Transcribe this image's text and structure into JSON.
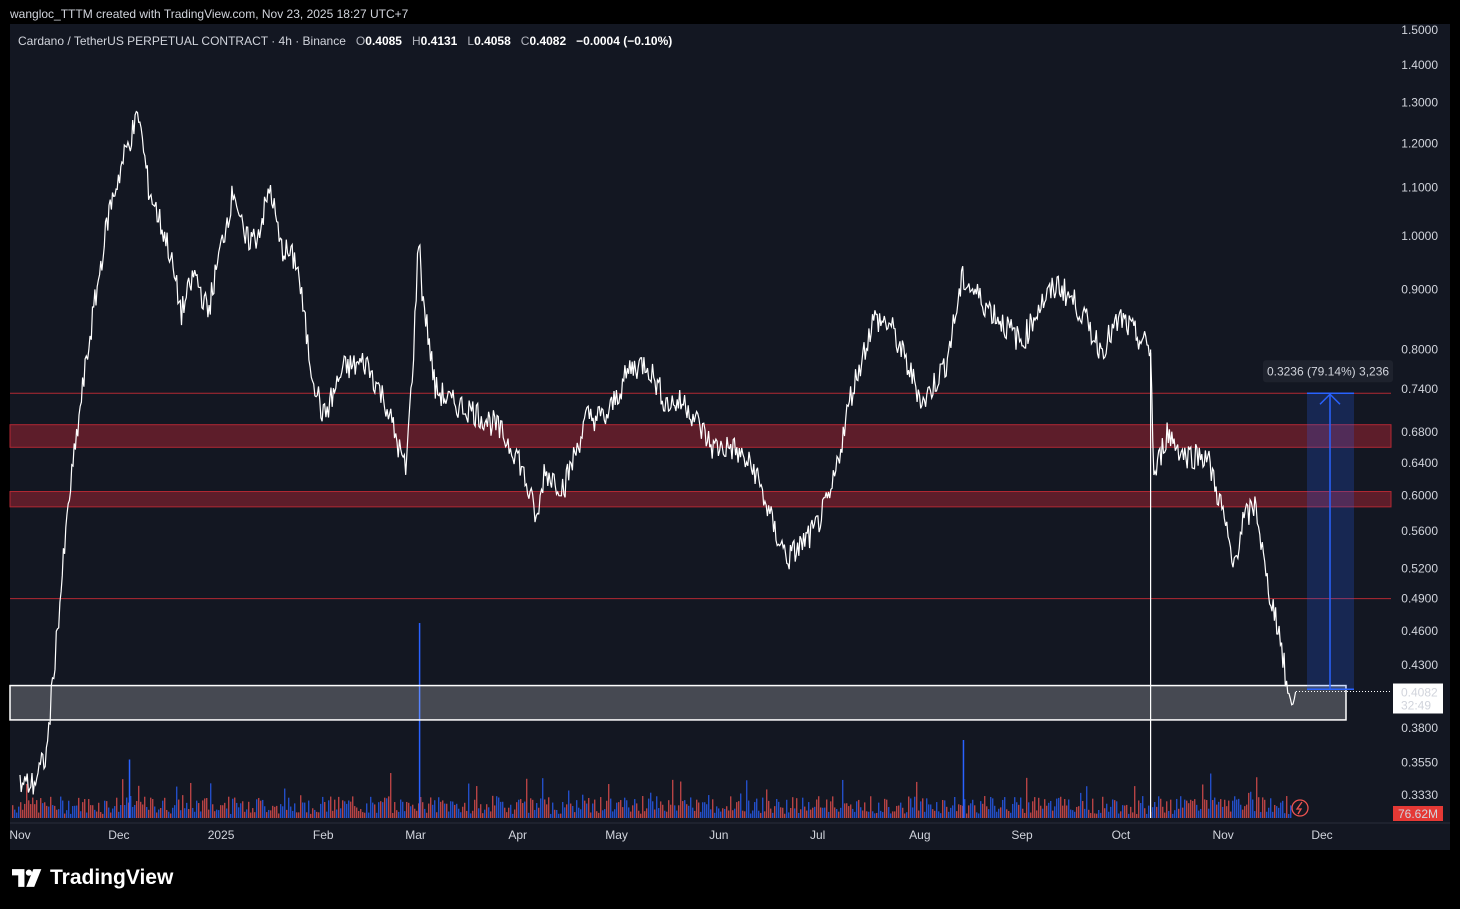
{
  "header": {
    "attribution": "wangloc_TTTM created with TradingView.com, Nov 23, 2025 18:27 UTC+7"
  },
  "symbol": {
    "name": "Cardano / TetherUS PERPETUAL CONTRACT · 4h · Binance",
    "o_label": "O",
    "o": "0.4085",
    "h_label": "H",
    "h": "0.4131",
    "l_label": "L",
    "l": "0.4058",
    "c_label": "C",
    "c": "0.4082",
    "change": "−0.0004 (−0.10%)"
  },
  "price_axis": {
    "ticks": [
      "1.5000",
      "1.4000",
      "1.3000",
      "1.2000",
      "1.1000",
      "1.0000",
      "0.9000",
      "0.8000",
      "0.7400",
      "0.6800",
      "0.6400",
      "0.6000",
      "0.5600",
      "0.5200",
      "0.4900",
      "0.4600",
      "0.4300",
      "0.3800",
      "0.3550",
      "0.3330"
    ],
    "last_price": "0.4082",
    "countdown": "32:49"
  },
  "volume": {
    "last_label": "76.62M"
  },
  "time_axis": {
    "labels": [
      "Nov",
      "Dec",
      "2025",
      "Feb",
      "Mar",
      "Apr",
      "May",
      "Jun",
      "Jul",
      "Aug",
      "Sep",
      "Oct",
      "Nov",
      "Dec"
    ]
  },
  "measure": {
    "label": "0.3236 (79.14%) 3,236"
  },
  "brand": {
    "name": "TradingView"
  },
  "colors": {
    "background": "#131722",
    "price_line": "#ffffff",
    "price_line_down": "#2962ff",
    "zone": "#6b1e2c",
    "level_line": "#b22833",
    "support_box": "#ffffff",
    "measure": "#2962ff",
    "vol_up": "#2962ff",
    "vol_down": "#ef5350",
    "last_label_bg": "#e53935"
  },
  "chart_data": {
    "type": "line",
    "series": [
      {
        "x": [
          "2024-11-01",
          "2024-11-05",
          "2024-11-09",
          "2024-11-12",
          "2024-11-16",
          "2024-11-20",
          "2024-11-23",
          "2024-11-28",
          "2024-12-03",
          "2024-12-07",
          "2024-12-10",
          "2024-12-16",
          "2024-12-20",
          "2024-12-24",
          "2024-12-28",
          "2025-01-01",
          "2025-01-05",
          "2025-01-08",
          "2025-01-12",
          "2025-01-16",
          "2025-01-19",
          "2025-01-24",
          "2025-01-28",
          "2025-02-01",
          "2025-02-03",
          "2025-02-07",
          "2025-02-14",
          "2025-02-20",
          "2025-02-26",
          "2025-02-28",
          "2025-03-02",
          "2025-03-03",
          "2025-03-07",
          "2025-03-12",
          "2025-03-18",
          "2025-03-25",
          "2025-04-01",
          "2025-04-07",
          "2025-04-09",
          "2025-04-15",
          "2025-04-22",
          "2025-04-28",
          "2025-05-05",
          "2025-05-10",
          "2025-05-16",
          "2025-05-22",
          "2025-05-30",
          "2025-06-05",
          "2025-06-12",
          "2025-06-18",
          "2025-06-22",
          "2025-06-30",
          "2025-07-05",
          "2025-07-11",
          "2025-07-18",
          "2025-07-23",
          "2025-08-02",
          "2025-08-09",
          "2025-08-14",
          "2025-08-20",
          "2025-08-25",
          "2025-09-01",
          "2025-09-06",
          "2025-09-12",
          "2025-09-18",
          "2025-09-25",
          "2025-10-01",
          "2025-10-06",
          "2025-10-10",
          "2025-10-11",
          "2025-10-15",
          "2025-10-20",
          "2025-10-27",
          "2025-11-01",
          "2025-11-04",
          "2025-11-07",
          "2025-11-11",
          "2025-11-14",
          "2025-11-18",
          "2025-11-21",
          "2025-11-23"
        ],
        "values": [
          0.34,
          0.34,
          0.36,
          0.45,
          0.6,
          0.74,
          0.85,
          1.05,
          1.18,
          1.27,
          1.1,
          0.98,
          0.86,
          0.93,
          0.86,
          0.98,
          1.1,
          0.99,
          1.0,
          1.1,
          0.98,
          0.95,
          0.78,
          0.7,
          0.72,
          0.77,
          0.78,
          0.72,
          0.63,
          0.76,
          1.0,
          0.9,
          0.74,
          0.72,
          0.71,
          0.69,
          0.65,
          0.57,
          0.63,
          0.61,
          0.7,
          0.7,
          0.77,
          0.78,
          0.72,
          0.72,
          0.66,
          0.66,
          0.63,
          0.56,
          0.53,
          0.56,
          0.6,
          0.73,
          0.85,
          0.84,
          0.72,
          0.78,
          0.92,
          0.88,
          0.85,
          0.81,
          0.87,
          0.91,
          0.87,
          0.8,
          0.85,
          0.82,
          0.8,
          0.62,
          0.68,
          0.65,
          0.65,
          0.58,
          0.52,
          0.57,
          0.59,
          0.51,
          0.46,
          0.4,
          0.408
        ]
      }
    ],
    "y_scale": "log",
    "ylim": [
      0.333,
      1.5
    ],
    "zones": [
      [
        0.66,
        0.69
      ],
      [
        0.587,
        0.605
      ]
    ],
    "levels": [
      0.734,
      0.49
    ],
    "support_box": [
      0.386,
      0.413
    ],
    "measure": {
      "from": 0.41,
      "to": 0.734,
      "change": 0.3236,
      "percent": 79.14,
      "ticks": 3236
    },
    "volume_spikes": [
      {
        "x": "2025-03-02",
        "value": 1.0
      },
      {
        "x": "2025-08-14",
        "value": 0.4
      },
      {
        "x": "2024-12-04",
        "value": 0.3
      }
    ]
  }
}
